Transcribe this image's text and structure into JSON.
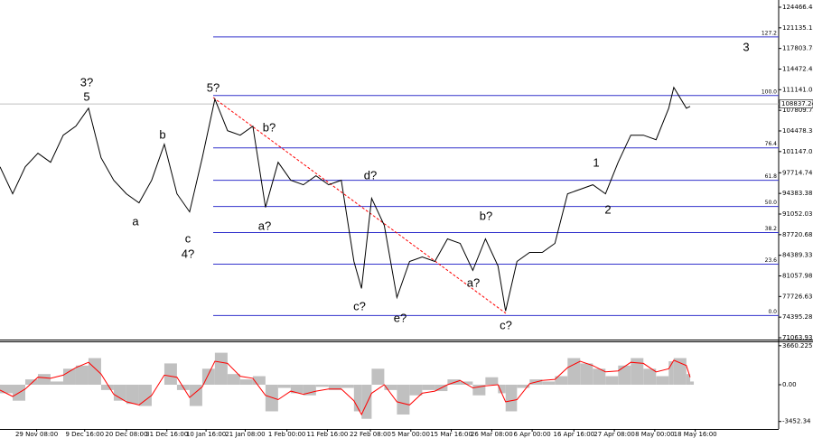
{
  "chart_data": [
    {
      "type": "line",
      "x": [
        0,
        1,
        2,
        3,
        4,
        5,
        6,
        7,
        8,
        9,
        10,
        11,
        12,
        13,
        14,
        15,
        16,
        17,
        18,
        19,
        20,
        21,
        22,
        23,
        24,
        25,
        26,
        27,
        28,
        28.6,
        29.4,
        30.4,
        31.4,
        32.4,
        33.4,
        34.4,
        35.4,
        36.4,
        37.4,
        38.4,
        39.4,
        40,
        40.9,
        41.9,
        42.9,
        43.9,
        44.9,
        45.9,
        46.9,
        47.9,
        48.9,
        49.9,
        50.9,
        51.9,
        52.9,
        53.3,
        54.3,
        54.6
      ],
      "series": [
        {
          "color": "#000000",
          "values": [
            98690,
            94321,
            98690,
            100874,
            99418,
            103787,
            105243,
            108155,
            100146,
            96505,
            94321,
            92864,
            96505,
            102330,
            94321,
            91408,
            100146,
            109612,
            104515,
            103787,
            105243,
            92136,
            99418,
            96505,
            95777,
            97233,
            95777,
            96505,
            83398,
            79029,
            93592,
            89224,
            77573,
            83398,
            84126,
            83398,
            87039,
            86311,
            81942,
            87039,
            82670,
            75389,
            83398,
            84855,
            84855,
            86311,
            94321,
            95049,
            95777,
            94321,
            99418,
            103787,
            103787,
            103058,
            108155,
            111505,
            108155,
            108447
          ]
        }
      ],
      "xlim": [
        0,
        61.6
      ],
      "ylim": [
        70772,
        125631
      ],
      "yticks": [
        124466.48,
        121135.13,
        117803.78,
        114472.43,
        111141.08,
        107809.73,
        104478.38,
        101147.03,
        97714.74,
        94383.38,
        91052.03,
        87720.68,
        84389.33,
        81057.98,
        77726.63,
        74395.28,
        71063.93
      ],
      "xticks": [
        {
          "value": 2.9,
          "label": "29 Nov 08:00"
        },
        {
          "value": 6.7,
          "label": "9 Dec 16:00"
        },
        {
          "value": 10,
          "label": "20 Dec 08:00"
        },
        {
          "value": 13.2,
          "label": "31 Dec 16:00"
        },
        {
          "value": 16.3,
          "label": "10 Jan 16:00"
        },
        {
          "value": 19.4,
          "label": "21 Jan 08:00"
        },
        {
          "value": 22.7,
          "label": "1 Feb 00:00"
        },
        {
          "value": 25.9,
          "label": "11 Feb 16:00"
        },
        {
          "value": 29.3,
          "label": "22 Feb 08:00"
        },
        {
          "value": 32.5,
          "label": "5 Mar 00:00"
        },
        {
          "value": 35.7,
          "label": "15 Mar 16:00"
        },
        {
          "value": 38.9,
          "label": "26 Mar 08:00"
        },
        {
          "value": 42.1,
          "label": "6 Apr 00:00"
        },
        {
          "value": 45.4,
          "label": "16 Apr 16:00"
        },
        {
          "value": 48.6,
          "label": "27 Apr 08:00"
        },
        {
          "value": 51.8,
          "label": "8 May 00:00"
        },
        {
          "value": 55,
          "label": "18 May 16:00"
        }
      ],
      "levels_color": "#3333cc",
      "levels": [
        {
          "value": 119660,
          "label": "127.2"
        },
        {
          "value": 110194,
          "label": "100.0"
        },
        {
          "value": 101747,
          "label": "76.4"
        },
        {
          "value": 96504,
          "label": "61.8"
        },
        {
          "value": 92281,
          "label": "50.0"
        },
        {
          "value": 88058,
          "label": "38.2"
        },
        {
          "value": 82961,
          "label": "23.6"
        },
        {
          "value": 74660,
          "label": "0.0"
        }
      ],
      "last_price": 108837.24,
      "annotations": [
        {
          "text": "3?",
          "color": "#0000cc"
        },
        {
          "text": "5",
          "color": "#cc0000"
        },
        {
          "text": "b",
          "color": "#cc0000"
        },
        {
          "text": "a",
          "color": "#cc0000"
        },
        {
          "text": "c",
          "color": "#cc0000"
        },
        {
          "text": "4?",
          "color": "#0000cc"
        },
        {
          "text": "5?",
          "color": "#0000cc"
        },
        {
          "text": "b?",
          "color": "#0000cc"
        },
        {
          "text": "a?",
          "color": "#0000cc"
        },
        {
          "text": "d?",
          "color": "#0000cc"
        },
        {
          "text": "c?",
          "color": "#0000cc"
        },
        {
          "text": "e?",
          "color": "#0000cc"
        },
        {
          "text": "b?",
          "color": "#0000cc"
        },
        {
          "text": "a?",
          "color": "#0000cc"
        },
        {
          "text": "c?",
          "color": "#0000cc"
        },
        {
          "text": "1",
          "color": "#0000cc"
        },
        {
          "text": "2",
          "color": "#0000cc"
        },
        {
          "text": "3",
          "color": "#0000cc"
        }
      ]
    },
    {
      "type": "bar",
      "ylim": [
        -4156,
        4069
      ],
      "yticks": [
        3660.225,
        {
          "value": 0,
          "label": "0.00"
        },
        -3452.34
      ],
      "series": [
        {
          "color": "#c0c0c0",
          "values": [
            -800,
            -1500,
            500,
            1000,
            300,
            1500,
            1800,
            2500,
            -500,
            -1500,
            -1800,
            -2000,
            0,
            2000,
            -500,
            -2000,
            1500,
            3000,
            1000,
            500,
            800,
            -2500,
            -300,
            -800,
            -1000,
            -200,
            -500,
            -300,
            -2500,
            -3200,
            1500,
            -500,
            -2800,
            -1000,
            -500,
            -600,
            500,
            300,
            -1000,
            700,
            -800,
            -2500,
            -300,
            500,
            300,
            800,
            2500,
            2000,
            1500,
            800,
            1800,
            2500,
            1500,
            800,
            2200,
            2500,
            1000,
            300
          ]
        },
        {
          "color": "#ff0000",
          "values": [
            -500,
            -1100,
            -400,
            700,
            600,
            900,
            1600,
            2100,
            1000,
            -900,
            -1600,
            -1900,
            -1000,
            900,
            700,
            -1200,
            -200,
            2200,
            2000,
            800,
            600,
            -1000,
            -1400,
            -600,
            -900,
            -600,
            -400,
            -400,
            -1500,
            -2800,
            -800,
            0,
            -1600,
            -1900,
            -800,
            -600,
            0,
            400,
            -300,
            -100,
            0,
            -1600,
            -1400,
            100,
            400,
            500,
            1600,
            2200,
            1800,
            1200,
            1300,
            2100,
            2000,
            1200,
            1500,
            2300,
            1800,
            700
          ]
        }
      ]
    }
  ]
}
